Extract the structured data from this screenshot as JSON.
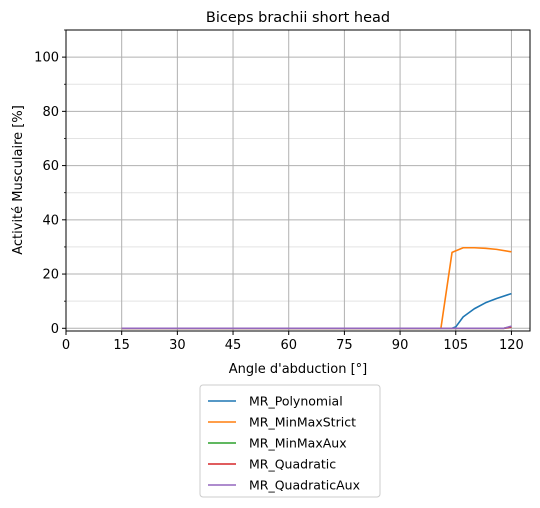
{
  "chart_data": {
    "type": "line",
    "title": "Biceps brachii short head",
    "xlabel": "Angle d'abduction [°]",
    "ylabel": "Activité Musculaire [%]",
    "xlim": [
      0,
      125
    ],
    "ylim": [
      -1,
      110
    ],
    "xticks": [
      0,
      15,
      30,
      45,
      60,
      75,
      90,
      105,
      120
    ],
    "yticks": [
      0,
      20,
      40,
      60,
      80,
      100
    ],
    "yminor_ticks": [
      10,
      30,
      50,
      70,
      90,
      110
    ],
    "grid": true,
    "legend_position": "below",
    "series": [
      {
        "name": "MR_Polynomial",
        "color": "#1f77b4",
        "x": [
          15,
          30,
          45,
          60,
          75,
          90,
          100,
          103,
          104,
          105,
          107,
          110,
          113,
          116,
          120
        ],
        "y": [
          0,
          0,
          0,
          0,
          0,
          0,
          0,
          0,
          0,
          0.5,
          4.2,
          7.2,
          9.4,
          11,
          12.8
        ]
      },
      {
        "name": "MR_MinMaxStrict",
        "color": "#ff7f0e",
        "x": [
          15,
          30,
          45,
          60,
          75,
          90,
          101,
          104,
          107,
          110,
          113,
          116,
          120
        ],
        "y": [
          0,
          0,
          0,
          0,
          0,
          0,
          0,
          28,
          29.7,
          29.7,
          29.5,
          29.1,
          28.2
        ]
      },
      {
        "name": "MR_MinMaxAux",
        "color": "#2ca02c",
        "x": [
          15,
          30,
          45,
          60,
          75,
          90,
          105,
          118,
          120
        ],
        "y": [
          0,
          0,
          0,
          0,
          0,
          0,
          0,
          0,
          0.6
        ]
      },
      {
        "name": "MR_Quadratic",
        "color": "#d62728",
        "x": [
          15,
          30,
          45,
          60,
          75,
          90,
          105,
          118,
          120
        ],
        "y": [
          0,
          0,
          0,
          0,
          0,
          0,
          0,
          0,
          0.5
        ]
      },
      {
        "name": "MR_QuadraticAux",
        "color": "#9467bd",
        "x": [
          15,
          30,
          45,
          60,
          75,
          90,
          105,
          118,
          120
        ],
        "y": [
          0,
          0,
          0,
          0,
          0,
          0,
          0,
          0,
          0.8
        ]
      }
    ]
  }
}
